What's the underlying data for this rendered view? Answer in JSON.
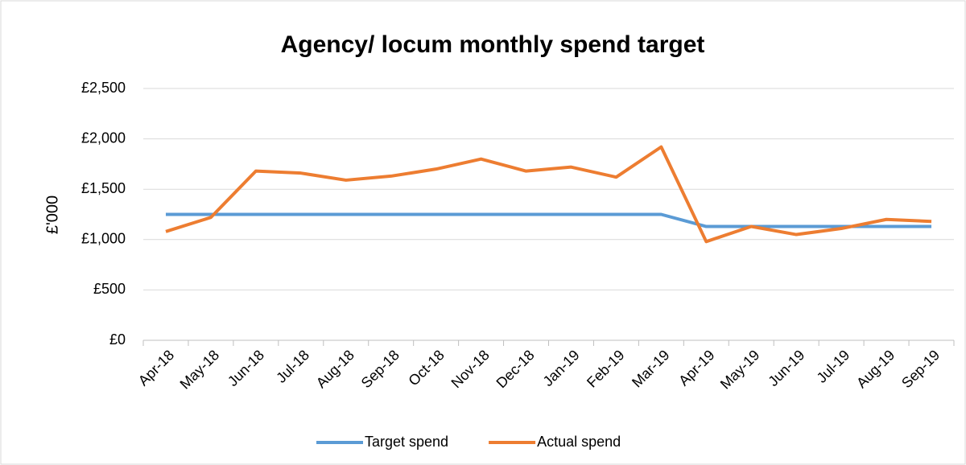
{
  "chart_data": {
    "type": "line",
    "title": "Agency/ locum monthly spend target",
    "ylabel": "£'000",
    "categories": [
      "Apr-18",
      "May-18",
      "Jun-18",
      "Jul-18",
      "Aug-18",
      "Sep-18",
      "Oct-18",
      "Nov-18",
      "Dec-18",
      "Jan-19",
      "Feb-19",
      "Mar-19",
      "Apr-19",
      "May-19",
      "Jun-19",
      "Jul-19",
      "Aug-19",
      "Sep-19"
    ],
    "series": [
      {
        "name": "Target spend",
        "color": "#5b9bd5",
        "values": [
          1250,
          1250,
          1250,
          1250,
          1250,
          1250,
          1250,
          1250,
          1250,
          1250,
          1250,
          1250,
          1130,
          1130,
          1130,
          1130,
          1130,
          1130
        ]
      },
      {
        "name": "Actual spend",
        "color": "#ed7d31",
        "values": [
          1080,
          1220,
          1680,
          1660,
          1590,
          1630,
          1700,
          1800,
          1680,
          1720,
          1620,
          1920,
          980,
          1130,
          1050,
          1110,
          1200,
          1180
        ]
      }
    ],
    "ylim": [
      0,
      2500
    ],
    "yticks": [
      {
        "value": 0,
        "label": "£0"
      },
      {
        "value": 500,
        "label": "£500"
      },
      {
        "value": 1000,
        "label": "£1,000"
      },
      {
        "value": 1500,
        "label": "£1,500"
      },
      {
        "value": 2000,
        "label": "£2,000"
      },
      {
        "value": 2500,
        "label": "£2,500"
      }
    ],
    "grid": true,
    "legend": "bottom"
  }
}
